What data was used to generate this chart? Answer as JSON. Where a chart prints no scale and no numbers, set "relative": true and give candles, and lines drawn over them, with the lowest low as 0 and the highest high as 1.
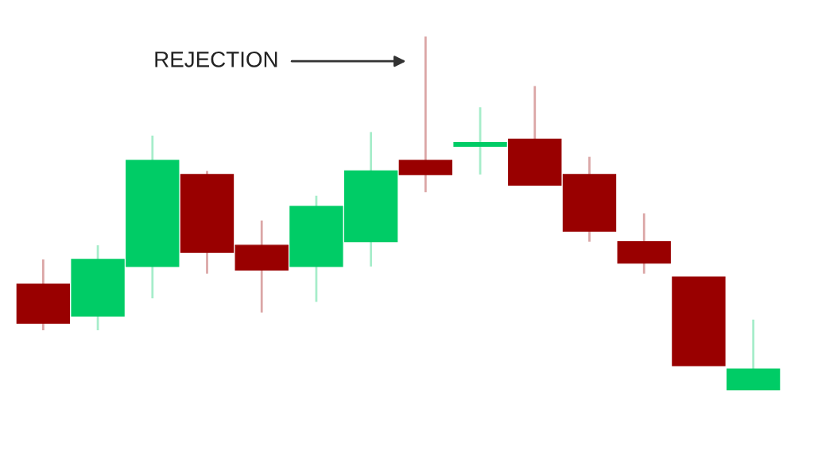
{
  "chart_data": {
    "type": "candlestick",
    "relative": true,
    "categories": [
      null,
      null,
      null,
      null,
      null,
      null,
      null,
      null,
      null,
      null,
      null,
      null,
      null,
      null
    ],
    "ohlc": [
      [
        0.3,
        0.37,
        0.17,
        0.19
      ],
      [
        0.21,
        0.41,
        0.17,
        0.37
      ],
      [
        0.35,
        0.72,
        0.26,
        0.65
      ],
      [
        0.61,
        0.62,
        0.33,
        0.39
      ],
      [
        0.41,
        0.48,
        0.22,
        0.34
      ],
      [
        0.35,
        0.55,
        0.25,
        0.52
      ],
      [
        0.42,
        0.73,
        0.35,
        0.62
      ],
      [
        0.65,
        1.0,
        0.56,
        0.61
      ],
      [
        0.69,
        0.8,
        0.61,
        0.7
      ],
      [
        0.71,
        0.86,
        0.58,
        0.58
      ],
      [
        0.61,
        0.66,
        0.42,
        0.45
      ],
      [
        0.42,
        0.5,
        0.33,
        0.36
      ],
      [
        0.32,
        0.32,
        0.07,
        0.07
      ],
      [
        0.0,
        0.2,
        0.0,
        0.06
      ]
    ],
    "colors": [
      "#990000",
      "#00cc66",
      "#00cc66",
      "#990000",
      "#990000",
      "#00cc66",
      "#00cc66",
      "#990000",
      "#00cc66",
      "#990000",
      "#990000",
      "#990000",
      "#990000",
      "#00cc66"
    ],
    "annotations": [
      "REJECTION"
    ]
  }
}
